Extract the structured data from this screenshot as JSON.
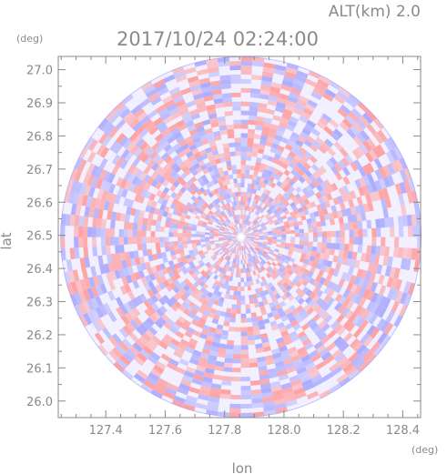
{
  "chart_data": {
    "type": "heatmap",
    "title": "2017/10/24 02:24:00",
    "subtitle": "ALT(km)  2.0",
    "xlabel": "lon",
    "ylabel": "lat",
    "x_unit": "(deg)",
    "y_unit": "(deg)",
    "xlim": [
      127.24,
      128.46
    ],
    "ylim": [
      25.95,
      27.04
    ],
    "x_ticks": [
      127.4,
      127.6,
      127.8,
      128.0,
      128.2,
      128.4
    ],
    "y_ticks": [
      26.0,
      26.1,
      26.2,
      26.3,
      26.4,
      26.5,
      26.6,
      26.7,
      26.8,
      26.9,
      27.0
    ],
    "x_tick_labels": [
      "127.4",
      "127.6",
      "127.8",
      "128.0",
      "128.2",
      "128.4"
    ],
    "y_tick_labels": [
      "26.0",
      "26.1",
      "26.2",
      "26.3",
      "26.4",
      "26.5",
      "26.6",
      "26.7",
      "26.8",
      "26.9",
      "27.0"
    ],
    "center": {
      "lon": 127.855,
      "lat": 26.495
    },
    "range_lat_deg": 0.545,
    "colors": {
      "positive": "#ff9c9c",
      "negative": "#a8a8ff",
      "neutral": "#f2f0ff",
      "frame": "#8a8a8a"
    }
  }
}
